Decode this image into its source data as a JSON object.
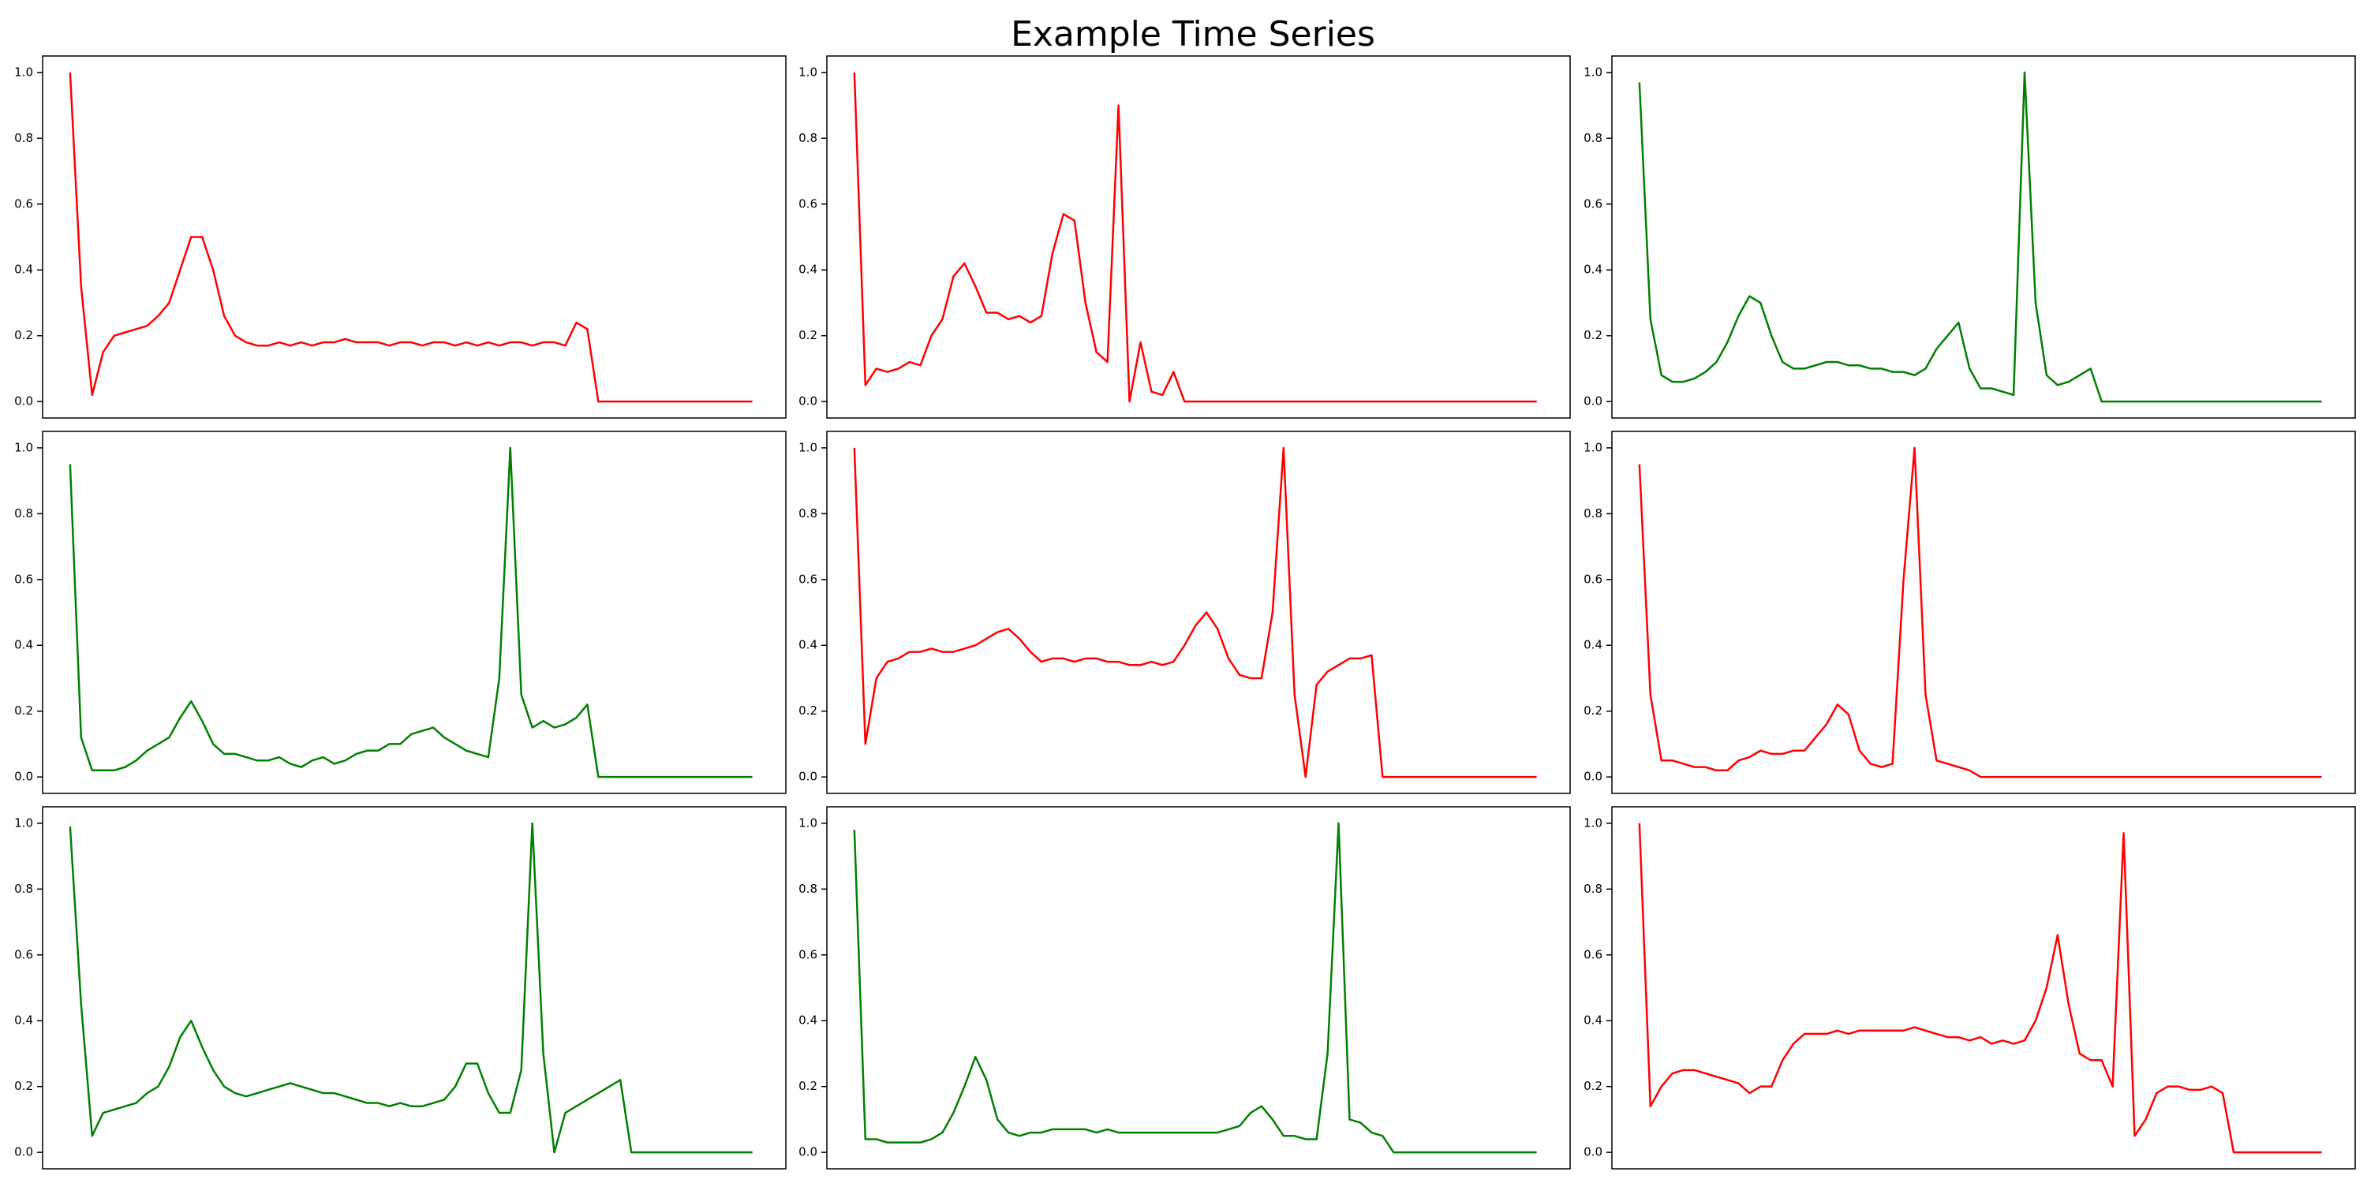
{
  "title": "Example Time Series",
  "chart_data": [
    {
      "type": "line",
      "color": "#ff0000",
      "ylim": [
        -0.05,
        1.05
      ],
      "yticks": [
        {
          "value": 0,
          "label": "0.0"
        },
        0.2,
        0.4,
        0.6,
        0.8,
        {
          "value": 1,
          "label": "1.0"
        }
      ],
      "values": [
        1.0,
        0.35,
        0.02,
        0.15,
        0.2,
        0.21,
        0.22,
        0.23,
        0.26,
        0.3,
        0.4,
        0.5,
        0.5,
        0.4,
        0.26,
        0.2,
        0.18,
        0.17,
        0.17,
        0.18,
        0.17,
        0.18,
        0.17,
        0.18,
        0.18,
        0.19,
        0.18,
        0.18,
        0.18,
        0.17,
        0.18,
        0.18,
        0.17,
        0.18,
        0.18,
        0.17,
        0.18,
        0.17,
        0.18,
        0.17,
        0.18,
        0.18,
        0.17,
        0.18,
        0.18,
        0.17,
        0.24,
        0.22,
        0,
        0,
        0,
        0,
        0,
        0,
        0,
        0,
        0,
        0,
        0,
        0,
        0,
        0,
        0
      ]
    },
    {
      "type": "line",
      "color": "#ff0000",
      "ylim": [
        -0.05,
        1.05
      ],
      "yticks": [
        {
          "value": 0,
          "label": "0.0"
        },
        0.2,
        0.4,
        0.6,
        0.8,
        {
          "value": 1,
          "label": "1.0"
        }
      ],
      "values": [
        1.0,
        0.05,
        0.1,
        0.09,
        0.1,
        0.12,
        0.11,
        0.2,
        0.25,
        0.38,
        0.42,
        0.35,
        0.27,
        0.27,
        0.25,
        0.26,
        0.24,
        0.26,
        0.45,
        0.57,
        0.55,
        0.3,
        0.15,
        0.12,
        0.9,
        0.0,
        0.18,
        0.03,
        0.02,
        0.09,
        0,
        0,
        0,
        0,
        0,
        0,
        0,
        0,
        0,
        0,
        0,
        0,
        0,
        0,
        0,
        0,
        0,
        0,
        0,
        0,
        0,
        0,
        0,
        0,
        0,
        0,
        0,
        0,
        0,
        0,
        0,
        0,
        0
      ]
    },
    {
      "type": "line",
      "color": "#008000",
      "ylim": [
        -0.05,
        1.05
      ],
      "yticks": [
        {
          "value": 0,
          "label": "0.0"
        },
        0.2,
        0.4,
        0.6,
        0.8,
        {
          "value": 1,
          "label": "1.0"
        }
      ],
      "values": [
        0.97,
        0.25,
        0.08,
        0.06,
        0.06,
        0.07,
        0.09,
        0.12,
        0.18,
        0.26,
        0.32,
        0.3,
        0.2,
        0.12,
        0.1,
        0.1,
        0.11,
        0.12,
        0.12,
        0.11,
        0.11,
        0.1,
        0.1,
        0.09,
        0.09,
        0.08,
        0.1,
        0.16,
        0.2,
        0.24,
        0.1,
        0.04,
        0.04,
        0.03,
        0.02,
        1.0,
        0.3,
        0.08,
        0.05,
        0.06,
        0.08,
        0.1,
        0,
        0,
        0,
        0,
        0,
        0,
        0,
        0,
        0,
        0,
        0,
        0,
        0,
        0,
        0,
        0,
        0,
        0,
        0,
        0,
        0
      ]
    },
    {
      "type": "line",
      "color": "#008000",
      "ylim": [
        -0.05,
        1.05
      ],
      "yticks": [
        {
          "value": 0,
          "label": "0.0"
        },
        0.2,
        0.4,
        0.6,
        0.8,
        {
          "value": 1,
          "label": "1.0"
        }
      ],
      "values": [
        0.95,
        0.12,
        0.02,
        0.02,
        0.02,
        0.03,
        0.05,
        0.08,
        0.1,
        0.12,
        0.18,
        0.23,
        0.17,
        0.1,
        0.07,
        0.07,
        0.06,
        0.05,
        0.05,
        0.06,
        0.04,
        0.03,
        0.05,
        0.06,
        0.04,
        0.05,
        0.07,
        0.08,
        0.08,
        0.1,
        0.1,
        0.13,
        0.14,
        0.15,
        0.12,
        0.1,
        0.08,
        0.07,
        0.06,
        0.3,
        1.0,
        0.25,
        0.15,
        0.17,
        0.15,
        0.16,
        0.18,
        0.22,
        0,
        0,
        0,
        0,
        0,
        0,
        0,
        0,
        0,
        0,
        0,
        0,
        0,
        0,
        0
      ]
    },
    {
      "type": "line",
      "color": "#ff0000",
      "ylim": [
        -0.05,
        1.05
      ],
      "yticks": [
        {
          "value": 0,
          "label": "0.0"
        },
        0.2,
        0.4,
        0.6,
        0.8,
        {
          "value": 1,
          "label": "1.0"
        }
      ],
      "values": [
        1.0,
        0.1,
        0.3,
        0.35,
        0.36,
        0.38,
        0.38,
        0.39,
        0.38,
        0.38,
        0.39,
        0.4,
        0.42,
        0.44,
        0.45,
        0.42,
        0.38,
        0.35,
        0.36,
        0.36,
        0.35,
        0.36,
        0.36,
        0.35,
        0.35,
        0.34,
        0.34,
        0.35,
        0.34,
        0.35,
        0.4,
        0.46,
        0.5,
        0.45,
        0.36,
        0.31,
        0.3,
        0.3,
        0.5,
        1.0,
        0.25,
        0.0,
        0.28,
        0.32,
        0.34,
        0.36,
        0.36,
        0.37,
        0,
        0,
        0,
        0,
        0,
        0,
        0,
        0,
        0,
        0,
        0,
        0,
        0,
        0,
        0
      ]
    },
    {
      "type": "line",
      "color": "#ff0000",
      "ylim": [
        -0.05,
        1.05
      ],
      "yticks": [
        {
          "value": 0,
          "label": "0.0"
        },
        0.2,
        0.4,
        0.6,
        0.8,
        {
          "value": 1,
          "label": "1.0"
        }
      ],
      "values": [
        0.95,
        0.25,
        0.05,
        0.05,
        0.04,
        0.03,
        0.03,
        0.02,
        0.02,
        0.05,
        0.06,
        0.08,
        0.07,
        0.07,
        0.08,
        0.08,
        0.12,
        0.16,
        0.22,
        0.19,
        0.08,
        0.04,
        0.03,
        0.04,
        0.6,
        1.0,
        0.25,
        0.05,
        0.04,
        0.03,
        0.02,
        0,
        0,
        0,
        0,
        0,
        0,
        0,
        0,
        0,
        0,
        0,
        0,
        0,
        0,
        0,
        0,
        0,
        0,
        0,
        0,
        0,
        0,
        0,
        0,
        0,
        0,
        0,
        0,
        0,
        0,
        0,
        0
      ]
    },
    {
      "type": "line",
      "color": "#008000",
      "ylim": [
        -0.05,
        1.05
      ],
      "yticks": [
        {
          "value": 0,
          "label": "0.0"
        },
        0.2,
        0.4,
        0.6,
        0.8,
        {
          "value": 1,
          "label": "1.0"
        }
      ],
      "values": [
        0.99,
        0.45,
        0.05,
        0.12,
        0.13,
        0.14,
        0.15,
        0.18,
        0.2,
        0.26,
        0.35,
        0.4,
        0.32,
        0.25,
        0.2,
        0.18,
        0.17,
        0.18,
        0.19,
        0.2,
        0.21,
        0.2,
        0.19,
        0.18,
        0.18,
        0.17,
        0.16,
        0.15,
        0.15,
        0.14,
        0.15,
        0.14,
        0.14,
        0.15,
        0.16,
        0.2,
        0.27,
        0.27,
        0.18,
        0.12,
        0.12,
        0.25,
        1.0,
        0.3,
        0.0,
        0.12,
        0.14,
        0.16,
        0.18,
        0.2,
        0.22,
        0,
        0,
        0,
        0,
        0,
        0,
        0,
        0,
        0,
        0,
        0,
        0
      ]
    },
    {
      "type": "line",
      "color": "#008000",
      "ylim": [
        -0.05,
        1.05
      ],
      "yticks": [
        {
          "value": 0,
          "label": "0.0"
        },
        0.2,
        0.4,
        0.6,
        0.8,
        {
          "value": 1,
          "label": "1.0"
        }
      ],
      "values": [
        0.98,
        0.04,
        0.04,
        0.03,
        0.03,
        0.03,
        0.03,
        0.04,
        0.06,
        0.12,
        0.2,
        0.29,
        0.22,
        0.1,
        0.06,
        0.05,
        0.06,
        0.06,
        0.07,
        0.07,
        0.07,
        0.07,
        0.06,
        0.07,
        0.06,
        0.06,
        0.06,
        0.06,
        0.06,
        0.06,
        0.06,
        0.06,
        0.06,
        0.06,
        0.07,
        0.08,
        0.12,
        0.14,
        0.1,
        0.05,
        0.05,
        0.04,
        0.04,
        0.3,
        1.0,
        0.1,
        0.09,
        0.06,
        0.05,
        0,
        0,
        0,
        0,
        0,
        0,
        0,
        0,
        0,
        0,
        0,
        0,
        0,
        0
      ]
    },
    {
      "type": "line",
      "color": "#ff0000",
      "ylim": [
        -0.05,
        1.05
      ],
      "yticks": [
        {
          "value": 0,
          "label": "0.0"
        },
        0.2,
        0.4,
        0.6,
        0.8,
        {
          "value": 1,
          "label": "1.0"
        }
      ],
      "values": [
        1.0,
        0.14,
        0.2,
        0.24,
        0.25,
        0.25,
        0.24,
        0.23,
        0.22,
        0.21,
        0.18,
        0.2,
        0.2,
        0.28,
        0.33,
        0.36,
        0.36,
        0.36,
        0.37,
        0.36,
        0.37,
        0.37,
        0.37,
        0.37,
        0.37,
        0.38,
        0.37,
        0.36,
        0.35,
        0.35,
        0.34,
        0.35,
        0.33,
        0.34,
        0.33,
        0.34,
        0.4,
        0.5,
        0.66,
        0.45,
        0.3,
        0.28,
        0.28,
        0.2,
        0.97,
        0.05,
        0.1,
        0.18,
        0.2,
        0.2,
        0.19,
        0.19,
        0.2,
        0.18,
        0,
        0,
        0,
        0,
        0,
        0,
        0,
        0,
        0
      ]
    }
  ]
}
